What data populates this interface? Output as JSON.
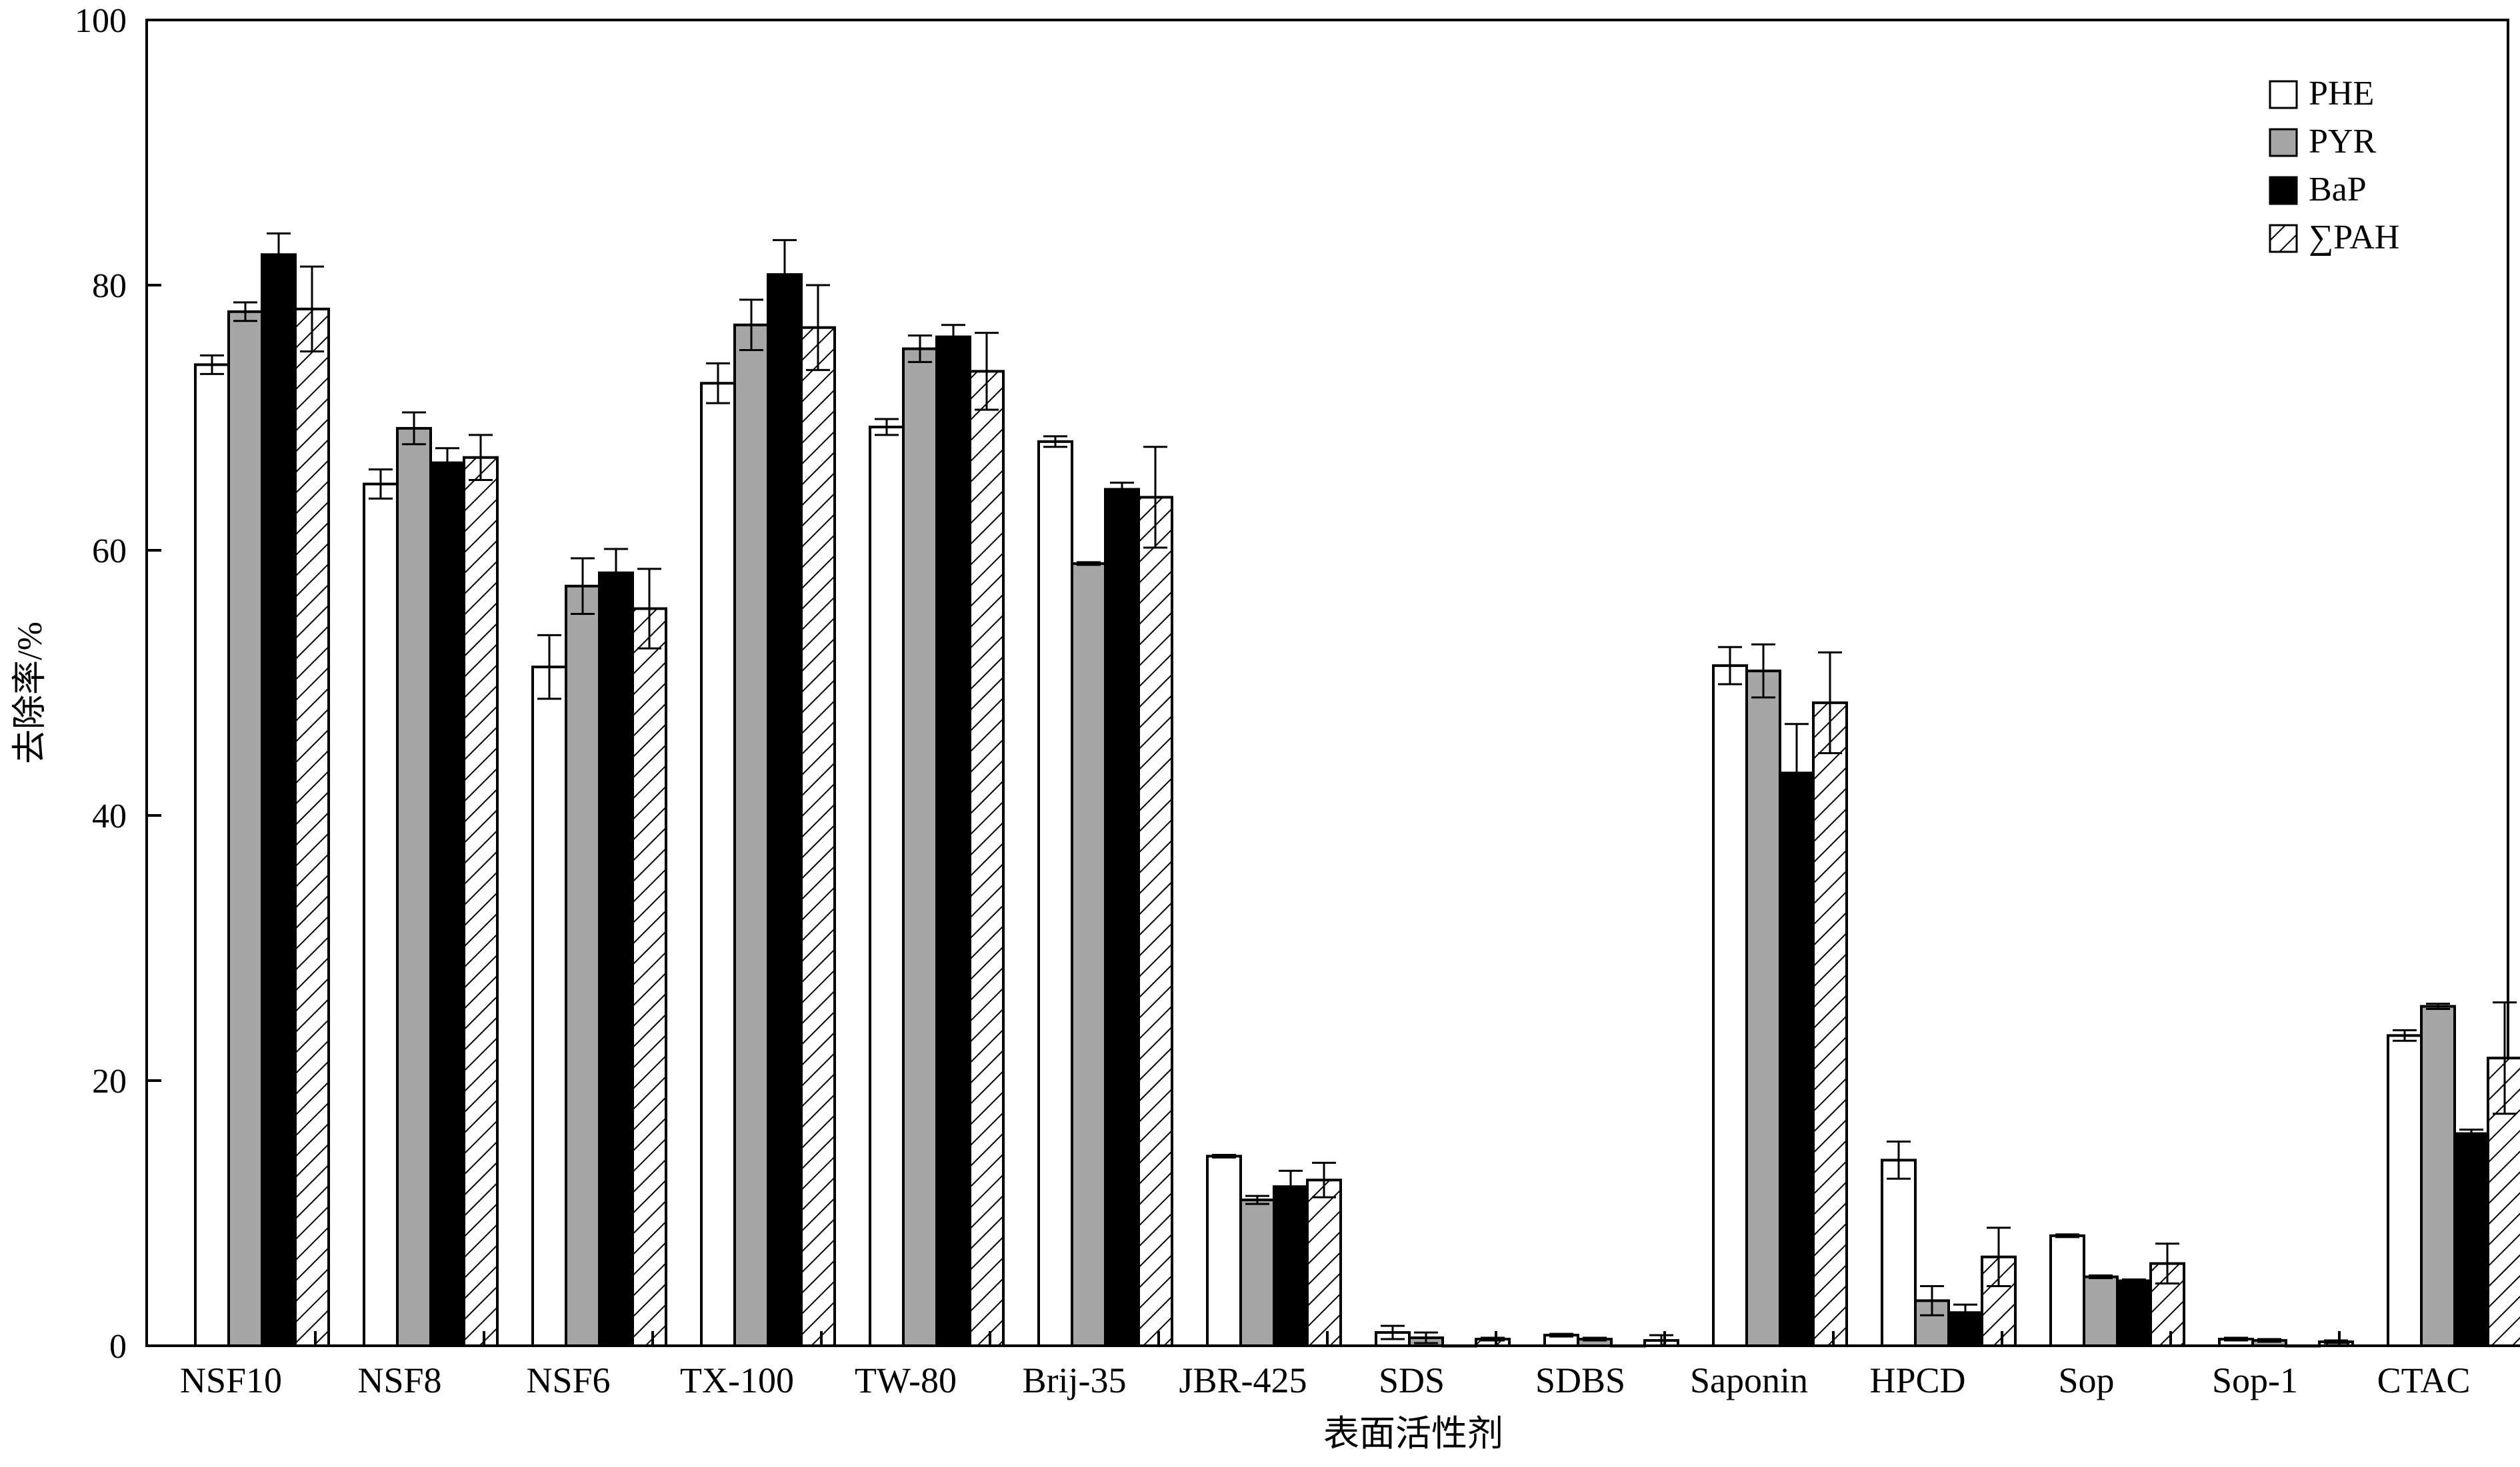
{
  "chart_data": {
    "type": "bar",
    "xlabel": "表面活性剂",
    "ylabel": "去除率/%",
    "ylim": [
      0,
      100
    ],
    "yticks": [
      0,
      20,
      40,
      60,
      80,
      100
    ],
    "legend_position": "top-right",
    "categories": [
      "NSF10",
      "NSF8",
      "NSF6",
      "TX-100",
      "TW-80",
      "Brij-35",
      "JBR-425",
      "SDS",
      "SDBS",
      "Saponin",
      "HPCD",
      "Sop",
      "Sop-1",
      "CTAC"
    ],
    "series": [
      {
        "name": "PHE",
        "fill": "#ffffff",
        "pattern": "solid",
        "values": [
          74.0,
          65.0,
          51.2,
          72.6,
          69.3,
          68.2,
          14.3,
          1.0,
          0.8,
          51.3,
          14.0,
          8.3,
          0.5,
          23.4
        ],
        "errors": [
          0.7,
          1.1,
          2.4,
          1.5,
          0.6,
          0.4,
          0.1,
          0.5,
          0.1,
          1.4,
          1.4,
          0.1,
          0.1,
          0.4
        ]
      },
      {
        "name": "PYR",
        "fill": "#a6a6a6",
        "pattern": "solid",
        "values": [
          78.0,
          69.2,
          57.3,
          77.0,
          75.2,
          59.0,
          11.0,
          0.6,
          0.5,
          50.9,
          3.4,
          5.2,
          0.4,
          25.6
        ],
        "errors": [
          0.7,
          1.2,
          2.1,
          1.9,
          1.0,
          0.1,
          0.3,
          0.4,
          0.1,
          2.0,
          1.1,
          0.1,
          0.1,
          0.2
        ]
      },
      {
        "name": "BaP",
        "fill": "#000000",
        "pattern": "solid",
        "values": [
          82.3,
          66.6,
          58.3,
          80.8,
          76.1,
          64.6,
          12.0,
          0.0,
          0.0,
          43.2,
          2.5,
          4.9,
          0.0,
          16.0
        ],
        "errors": [
          1.6,
          1.1,
          1.8,
          2.6,
          0.9,
          0.5,
          1.2,
          0.0,
          0.0,
          3.7,
          0.6,
          0.1,
          0.0,
          0.3
        ]
      },
      {
        "name": "∑PAH",
        "fill": "#ffffff",
        "pattern": "hatch",
        "values": [
          78.2,
          67.0,
          55.6,
          76.8,
          73.5,
          64.0,
          12.5,
          0.5,
          0.4,
          48.5,
          6.7,
          6.2,
          0.3,
          21.7
        ],
        "errors": [
          3.2,
          1.7,
          3.0,
          3.2,
          2.9,
          3.8,
          1.3,
          0.1,
          0.4,
          3.8,
          2.2,
          1.5,
          0.1,
          4.2
        ]
      }
    ]
  }
}
